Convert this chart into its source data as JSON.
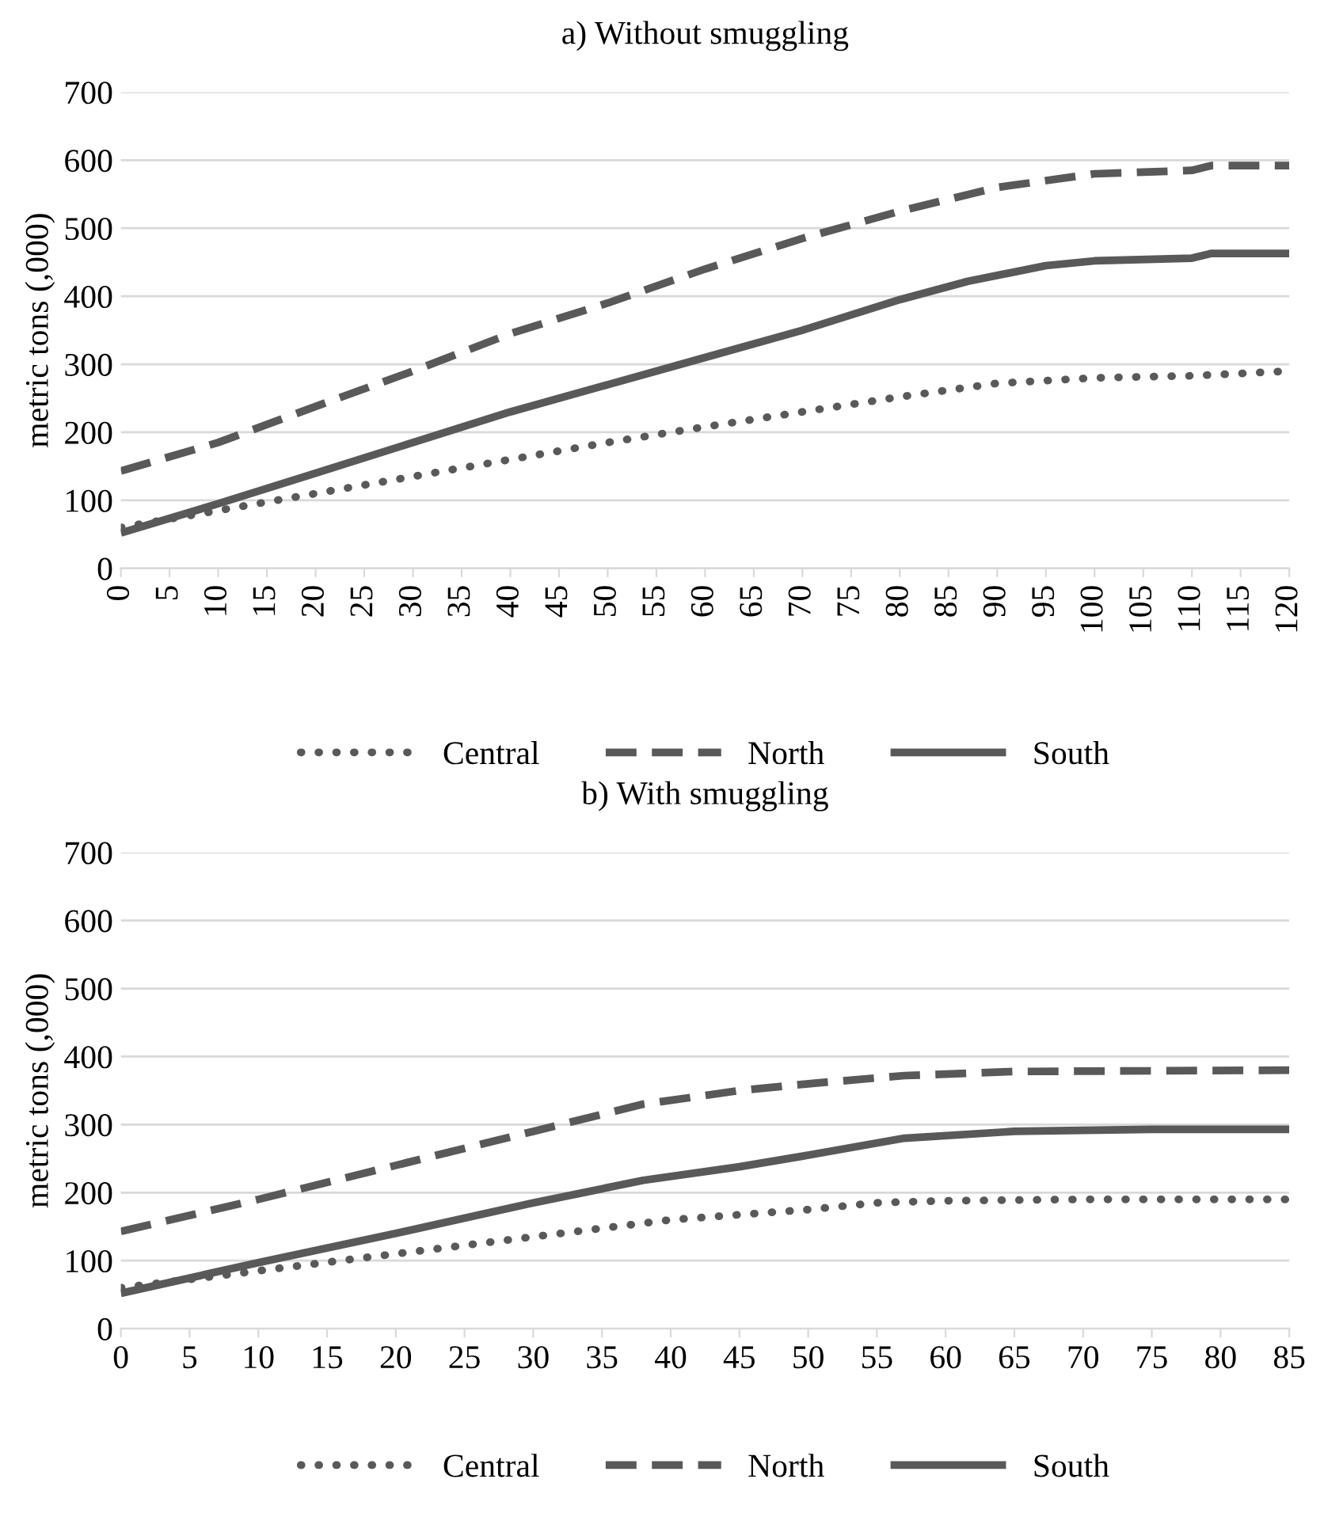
{
  "chart_data": [
    {
      "type": "line",
      "title": "a) Without smuggling",
      "ylabel": "metric tons (,000)",
      "xlim": [
        0,
        120
      ],
      "xticks": [
        0,
        5,
        10,
        15,
        20,
        25,
        30,
        35,
        40,
        45,
        50,
        55,
        60,
        65,
        70,
        75,
        80,
        85,
        90,
        95,
        100,
        105,
        110,
        115,
        120
      ],
      "ylim": [
        0,
        700
      ],
      "yticks": [
        0,
        100,
        200,
        300,
        400,
        500,
        600,
        700
      ],
      "grid": "y",
      "legend": "bottom",
      "series": [
        {
          "name": "Central",
          "color": "#595959",
          "line_style": "dotted",
          "x": [
            0,
            10,
            20,
            30,
            40,
            50,
            60,
            70,
            80,
            90,
            100,
            110,
            120
          ],
          "values": [
            60,
            85,
            110,
            135,
            160,
            185,
            208,
            230,
            252,
            272,
            280,
            283,
            290
          ]
        },
        {
          "name": "North",
          "color": "#595959",
          "line_style": "dashed",
          "x": [
            0,
            10,
            20,
            30,
            40,
            50,
            60,
            70,
            80,
            90,
            100,
            110,
            112,
            120
          ],
          "values": [
            143,
            185,
            238,
            290,
            345,
            390,
            440,
            485,
            525,
            560,
            580,
            585,
            592,
            592
          ]
        },
        {
          "name": "South",
          "color": "#595959",
          "line_style": "solid",
          "x": [
            0,
            10,
            20,
            30,
            40,
            50,
            60,
            70,
            80,
            87,
            95,
            100,
            110,
            112,
            120
          ],
          "values": [
            52,
            95,
            140,
            185,
            230,
            270,
            310,
            350,
            395,
            422,
            445,
            452,
            456,
            463,
            463
          ]
        }
      ]
    },
    {
      "type": "line",
      "title": "b) With smuggling",
      "ylabel": "metric tons (,000)",
      "xlim": [
        0,
        85
      ],
      "xticks": [
        0,
        5,
        10,
        15,
        20,
        25,
        30,
        35,
        40,
        45,
        50,
        55,
        60,
        65,
        70,
        75,
        80,
        85
      ],
      "ylim": [
        0,
        700
      ],
      "yticks": [
        0,
        100,
        200,
        300,
        400,
        500,
        600,
        700
      ],
      "grid": "y",
      "legend": "bottom",
      "series": [
        {
          "name": "Central",
          "color": "#595959",
          "line_style": "dotted",
          "x": [
            0,
            10,
            20,
            30,
            40,
            50,
            55,
            60,
            70,
            85
          ],
          "values": [
            60,
            85,
            110,
            135,
            160,
            175,
            185,
            188,
            190,
            190
          ]
        },
        {
          "name": "North",
          "color": "#595959",
          "line_style": "dashed",
          "x": [
            0,
            10,
            20,
            30,
            38,
            45,
            50,
            57,
            65,
            85
          ],
          "values": [
            143,
            190,
            240,
            290,
            330,
            350,
            360,
            372,
            378,
            380
          ]
        },
        {
          "name": "South",
          "color": "#595959",
          "line_style": "solid",
          "x": [
            0,
            10,
            20,
            30,
            38,
            45,
            50,
            57,
            65,
            75,
            85
          ],
          "values": [
            52,
            97,
            140,
            185,
            218,
            238,
            255,
            280,
            290,
            293,
            293
          ]
        }
      ]
    }
  ]
}
